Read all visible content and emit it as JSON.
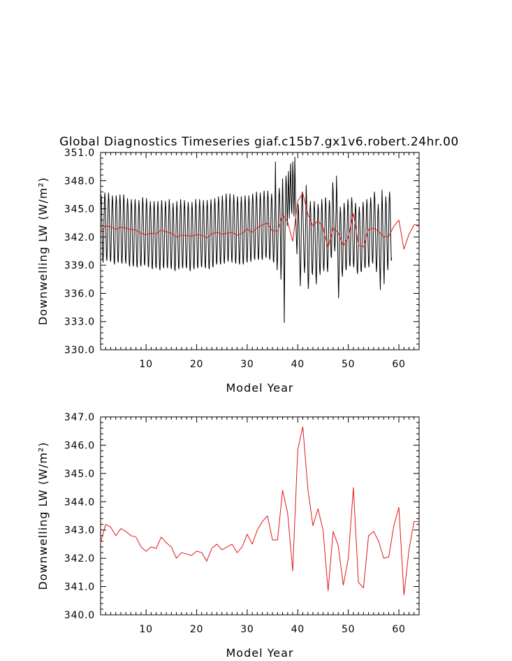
{
  "figure": {
    "title": "Global Diagnostics Timeseries giaf.c15b7.gx1v6.robert.24hr.00"
  },
  "chart_data": [
    {
      "type": "line",
      "xlabel": "Model Year",
      "ylabel": "Downwelling LW (W/m²)",
      "xlim": [
        1,
        64
      ],
      "ylim": [
        330,
        351
      ],
      "xticks": [
        10,
        20,
        30,
        40,
        50,
        60
      ],
      "yticks": [
        330.0,
        333.0,
        336.0,
        339.0,
        342.0,
        345.0,
        348.0,
        351.0
      ],
      "ytick_labels": [
        "330.0",
        "333.0",
        "336.0",
        "339.0",
        "342.0",
        "345.0",
        "348.0",
        "351.0"
      ],
      "series": [
        {
          "kind": "monthly",
          "color": "#000000",
          "x_start": 1.0,
          "x_step": 0.0833333,
          "values": [
            345.0,
            346.5,
            346.0,
            344.0,
            341.5,
            339.8,
            339.3,
            340.5,
            343.5,
            345.8,
            346.7,
            346.0,
            344.0,
            341.8,
            339.8,
            339.5,
            340.8,
            343.6,
            345.7,
            346.7,
            345.8,
            343.8,
            341.5,
            339.6,
            339.4,
            340.8,
            343.4,
            345.5,
            346.4,
            345.6,
            343.5,
            341.3,
            339.4,
            339.1,
            340.5,
            343.2,
            345.5,
            346.4,
            345.8,
            343.7,
            341.4,
            339.5,
            339.3,
            340.7,
            343.4,
            345.7,
            346.5,
            345.7,
            343.6,
            341.3,
            339.4,
            339.2,
            340.6,
            343.3,
            345.6,
            346.5,
            345.8,
            343.7,
            341.4,
            339.5,
            339.2,
            340.5,
            343.1,
            345.3,
            346.1,
            345.4,
            343.2,
            340.9,
            339.1,
            338.9,
            340.3,
            342.9,
            345.1,
            346.0,
            345.2,
            343.0,
            340.9,
            339.1,
            338.9,
            340.3,
            343.0,
            345.1,
            346.0,
            345.2,
            343.0,
            340.8,
            339.0,
            338.8,
            340.2,
            342.8,
            345.0,
            345.9,
            345.1,
            343.0,
            340.9,
            339.1,
            338.9,
            340.4,
            343.1,
            345.3,
            346.2,
            345.4,
            343.2,
            341.0,
            339.2,
            339.0,
            340.4,
            343.0,
            345.2,
            346.1,
            345.3,
            343.1,
            340.9,
            339.0,
            338.8,
            340.2,
            342.8,
            344.9,
            345.8,
            345.0,
            342.9,
            340.7,
            338.8,
            338.6,
            340.0,
            342.6,
            344.8,
            345.8,
            345.0,
            342.9,
            340.8,
            338.9,
            338.7,
            340.1,
            342.7,
            344.9,
            345.8,
            345.0,
            342.8,
            340.6,
            338.7,
            338.5,
            340.0,
            342.6,
            344.9,
            345.9,
            345.1,
            343.0,
            340.8,
            338.9,
            338.7,
            340.1,
            342.7,
            344.9,
            345.8,
            345.0,
            342.9,
            340.7,
            338.9,
            338.7,
            340.1,
            342.8,
            345.0,
            346.0,
            345.2,
            343.0,
            340.8,
            338.9,
            338.6,
            340.0,
            342.5,
            344.7,
            345.6,
            344.8,
            342.6,
            340.4,
            338.6,
            338.4,
            339.9,
            342.6,
            344.8,
            345.8,
            345.0,
            342.8,
            340.6,
            338.8,
            338.6,
            340.0,
            342.7,
            344.9,
            346.0,
            345.2,
            343.0,
            340.8,
            338.9,
            338.7,
            340.2,
            342.8,
            345.0,
            345.9,
            345.1,
            342.9,
            340.7,
            338.9,
            338.7,
            340.0,
            342.6,
            344.8,
            345.7,
            344.9,
            342.7,
            340.5,
            338.6,
            338.4,
            339.9,
            342.5,
            344.7,
            345.7,
            344.9,
            342.8,
            340.6,
            338.8,
            338.6,
            340.1,
            342.8,
            345.0,
            346.0,
            345.2,
            343.0,
            340.8,
            338.9,
            338.7,
            340.2,
            342.8,
            345.0,
            346.0,
            345.2,
            343.0,
            340.8,
            339.0,
            338.8,
            340.2,
            342.8,
            345.0,
            345.9,
            345.1,
            342.9,
            340.7,
            338.9,
            338.7,
            340.2,
            342.8,
            345.0,
            345.9,
            345.1,
            342.9,
            340.7,
            338.8,
            338.6,
            340.1,
            342.7,
            345.0,
            346.0,
            345.2,
            343.0,
            340.9,
            339.0,
            338.8,
            340.3,
            342.9,
            345.1,
            346.1,
            345.4,
            343.3,
            341.1,
            339.3,
            339.1,
            340.6,
            343.2,
            345.4,
            346.3,
            345.5,
            343.3,
            341.1,
            339.3,
            339.1,
            340.5,
            343.1,
            345.3,
            346.4,
            345.6,
            343.5,
            341.3,
            339.4,
            339.2,
            340.6,
            343.3,
            345.6,
            346.6,
            345.8,
            343.7,
            341.5,
            339.6,
            339.4,
            340.8,
            343.4,
            345.6,
            346.6,
            345.8,
            343.6,
            341.4,
            339.6,
            339.3,
            340.7,
            343.3,
            345.5,
            346.5,
            345.7,
            343.5,
            341.3,
            339.4,
            339.2,
            340.6,
            343.2,
            345.4,
            346.3,
            345.5,
            343.4,
            341.2,
            339.3,
            339.1,
            340.6,
            343.1,
            345.3,
            346.3,
            345.4,
            343.3,
            341.1,
            339.3,
            339.1,
            340.5,
            343.2,
            345.4,
            346.4,
            345.6,
            343.4,
            341.3,
            339.5,
            339.3,
            340.7,
            343.3,
            345.4,
            346.4,
            345.6,
            343.5,
            341.4,
            339.6,
            339.4,
            340.9,
            343.5,
            345.7,
            346.6,
            345.9,
            343.8,
            341.6,
            339.8,
            339.6,
            341.0,
            343.6,
            345.8,
            346.8,
            346.0,
            343.9,
            341.7,
            339.8,
            339.6,
            341.0,
            343.6,
            345.8,
            346.7,
            345.9,
            343.7,
            341.6,
            339.8,
            339.6,
            341.0,
            343.7,
            345.9,
            346.9,
            346.2,
            344.1,
            341.9,
            340.0,
            339.8,
            341.2,
            343.8,
            346.0,
            346.9,
            346.1,
            343.9,
            341.7,
            339.8,
            339.6,
            341.0,
            343.6,
            345.8,
            346.6,
            345.8,
            343.6,
            341.4,
            339.5,
            339.3,
            340.7,
            343.4,
            345.6,
            350.0,
            345.4,
            342.5,
            340.2,
            338.5,
            339.5,
            341.7,
            344.0,
            346.2,
            347.2,
            346.3,
            344.2,
            341.5,
            337.5,
            338.8,
            342.5,
            345.8,
            348.2,
            346.0,
            343.0,
            339.0,
            332.9,
            338.5,
            343.5,
            346.5,
            348.5,
            347.8,
            345.6,
            343.2,
            344.8,
            346.9,
            349.0,
            346.5,
            344.0,
            346.0,
            348.0,
            349.8,
            347.5,
            345.0,
            344.5,
            347.0,
            350.0,
            348.5,
            346.3,
            344.2,
            346.8,
            350.5,
            348.0,
            345.0,
            343.0,
            341.5,
            340.2,
            341.8,
            343.8,
            345.5,
            344.8,
            343.0,
            341.0,
            338.8,
            336.8,
            338.5,
            341.5,
            344.5,
            346.5,
            346.8,
            345.2,
            343.3,
            341.2,
            339.3,
            338.2,
            339.2,
            341.9,
            344.6,
            347.5,
            346.0,
            344.0,
            341.5,
            338.2,
            336.5,
            337.5,
            340.5,
            343.0,
            345.0,
            345.8,
            344.5,
            342.5,
            340.2,
            338.3,
            338.0,
            339.5,
            342.0,
            344.5,
            345.8,
            345.0,
            343.0,
            340.5,
            338.0,
            337.0,
            338.5,
            341.5,
            344.0,
            345.5,
            345.0,
            343.0,
            340.5,
            338.5,
            338.0,
            339.5,
            342.0,
            344.5,
            346.0,
            345.2,
            343.0,
            340.8,
            338.8,
            338.4,
            339.8,
            342.5,
            344.8,
            346.2,
            345.5,
            343.3,
            341.0,
            338.8,
            338.3,
            339.8,
            342.5,
            344.7,
            345.9,
            345.2,
            343.2,
            341.5,
            340.0,
            339.8,
            342.0,
            344.8,
            347.8,
            347.0,
            345.0,
            343.0,
            341.2,
            340.5,
            341.5,
            343.0,
            345.0,
            348.5,
            346.5,
            343.5,
            340.5,
            337.5,
            335.5,
            338.0,
            341.2,
            343.8,
            345.2,
            344.5,
            342.5,
            340.3,
            338.3,
            337.8,
            339.2,
            341.9,
            344.3,
            345.6,
            344.9,
            342.8,
            340.6,
            338.7,
            338.5,
            339.9,
            342.6,
            344.8,
            346.0,
            345.3,
            343.2,
            341.0,
            339.1,
            338.9,
            340.3,
            343.0,
            345.2,
            346.2,
            345.5,
            343.3,
            341.1,
            339.2,
            338.8,
            340.1,
            342.6,
            344.6,
            345.6,
            344.8,
            342.6,
            340.3,
            338.4,
            338.1,
            339.5,
            342.1,
            344.3,
            345.2,
            344.4,
            342.3,
            340.2,
            338.4,
            338.3,
            339.7,
            342.4,
            344.6,
            345.7,
            345.0,
            342.9,
            340.7,
            338.9,
            338.7,
            340.2,
            342.8,
            345.0,
            346.0,
            345.3,
            343.2,
            341.0,
            339.1,
            338.8,
            340.2,
            342.9,
            345.1,
            346.2,
            345.6,
            343.6,
            341.4,
            339.5,
            339.2,
            340.6,
            343.3,
            345.6,
            346.8,
            346.0,
            343.8,
            341.2,
            339.0,
            338.3,
            339.6,
            342.3,
            344.6,
            345.5,
            344.5,
            342.2,
            340.0,
            338.1,
            336.4,
            339.5,
            342.0,
            344.5,
            347.0,
            345.5,
            342.8,
            340.5,
            338.5,
            337.0,
            340.0,
            342.5,
            344.8,
            346.3,
            345.5,
            343.2,
            341.0,
            339.0,
            338.5,
            341.0,
            343.5,
            346.0,
            346.8,
            345.8,
            343.5,
            341.3,
            339.5,
            339.8
          ]
        },
        {
          "kind": "annual",
          "color": "#e01818",
          "x": [
            1.0,
            2.0,
            3.0,
            4.0,
            5.0,
            6.0,
            7.0,
            8.0,
            9.0,
            10.0,
            11.0,
            12.0,
            13.0,
            14.0,
            15.0,
            16.0,
            17.0,
            18.0,
            19.0,
            20.0,
            21.0,
            22.0,
            23.0,
            24.0,
            25.0,
            26.0,
            27.0,
            28.0,
            29.0,
            30.0,
            31.0,
            32.0,
            33.0,
            34.0,
            35.0,
            36.0,
            37.0,
            38.0,
            39.0,
            40.0,
            41.0,
            42.0,
            43.0,
            44.0,
            45.0,
            46.0,
            47.0,
            48.0,
            49.0,
            50.0,
            51.0,
            52.0,
            53.0,
            54.0,
            55.0,
            56.0,
            57.0,
            58.0,
            59.0,
            60.0,
            61.0,
            62.0,
            63.0,
            64.0
          ],
          "values": [
            342.55,
            343.2,
            343.1,
            342.8,
            343.05,
            342.95,
            342.8,
            342.75,
            342.4,
            342.25,
            342.4,
            342.35,
            342.75,
            342.55,
            342.4,
            342.0,
            342.2,
            342.15,
            342.1,
            342.25,
            342.2,
            341.9,
            342.35,
            342.5,
            342.3,
            342.4,
            342.5,
            342.2,
            342.4,
            342.85,
            342.5,
            343.0,
            343.3,
            343.5,
            342.65,
            342.65,
            344.4,
            343.6,
            341.55,
            345.85,
            346.65,
            344.45,
            343.15,
            343.75,
            343.0,
            340.85,
            342.95,
            342.45,
            341.05,
            342.0,
            344.5,
            341.15,
            340.95,
            342.8,
            342.95,
            342.6,
            342.0,
            342.05,
            343.15,
            343.8,
            340.7,
            342.3,
            343.3,
            343.3
          ]
        }
      ]
    },
    {
      "type": "line",
      "xlabel": "Model Year",
      "ylabel": "Downwelling LW (W/m²)",
      "xlim": [
        1,
        64
      ],
      "ylim": [
        340,
        347
      ],
      "xticks": [
        10,
        20,
        30,
        40,
        50,
        60
      ],
      "yticks": [
        340.0,
        341.0,
        342.0,
        343.0,
        344.0,
        345.0,
        346.0,
        347.0
      ],
      "ytick_labels": [
        "340.0",
        "341.0",
        "342.0",
        "343.0",
        "344.0",
        "345.0",
        "346.0",
        "347.0"
      ],
      "series": [
        {
          "kind": "annual",
          "color": "#e01818",
          "x": [
            1.0,
            2.0,
            3.0,
            4.0,
            5.0,
            6.0,
            7.0,
            8.0,
            9.0,
            10.0,
            11.0,
            12.0,
            13.0,
            14.0,
            15.0,
            16.0,
            17.0,
            18.0,
            19.0,
            20.0,
            21.0,
            22.0,
            23.0,
            24.0,
            25.0,
            26.0,
            27.0,
            28.0,
            29.0,
            30.0,
            31.0,
            32.0,
            33.0,
            34.0,
            35.0,
            36.0,
            37.0,
            38.0,
            39.0,
            40.0,
            41.0,
            42.0,
            43.0,
            44.0,
            45.0,
            46.0,
            47.0,
            48.0,
            49.0,
            50.0,
            51.0,
            52.0,
            53.0,
            54.0,
            55.0,
            56.0,
            57.0,
            58.0,
            59.0,
            60.0,
            61.0,
            62.0,
            63.0,
            64.0
          ],
          "values": [
            342.55,
            343.2,
            343.1,
            342.8,
            343.05,
            342.95,
            342.8,
            342.75,
            342.4,
            342.25,
            342.4,
            342.35,
            342.75,
            342.55,
            342.4,
            342.0,
            342.2,
            342.15,
            342.1,
            342.25,
            342.2,
            341.9,
            342.35,
            342.5,
            342.3,
            342.4,
            342.5,
            342.2,
            342.4,
            342.85,
            342.5,
            343.0,
            343.3,
            343.5,
            342.65,
            342.65,
            344.4,
            343.6,
            341.55,
            345.85,
            346.65,
            344.45,
            343.15,
            343.75,
            343.0,
            340.85,
            342.95,
            342.45,
            341.05,
            342.0,
            344.5,
            341.15,
            340.95,
            342.8,
            342.95,
            342.6,
            342.0,
            342.05,
            343.15,
            343.8,
            340.7,
            342.3,
            343.3,
            343.3
          ]
        }
      ]
    }
  ]
}
